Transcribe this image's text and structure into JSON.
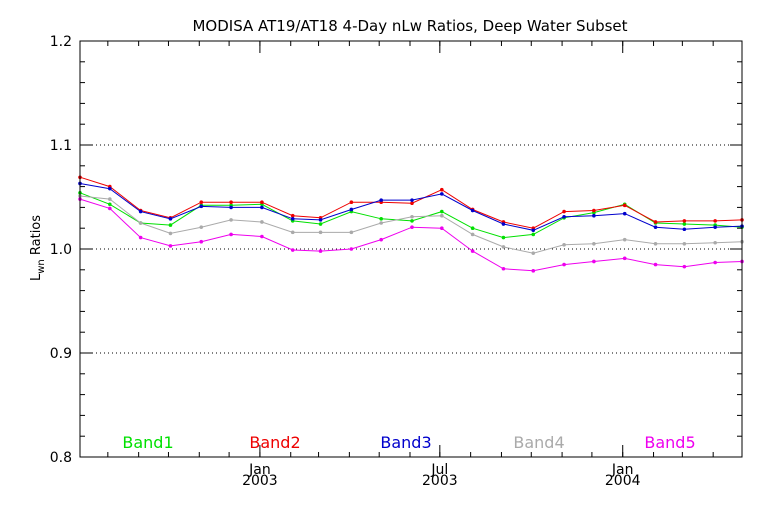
{
  "chart_data": {
    "type": "line",
    "title": "MODISA AT19/AT18 4-Day nLw Ratios, Deep Water Subset",
    "ylabel_main": "L",
    "ylabel_sub": "wn",
    "ylabel_rest": " Ratios",
    "xlabel": "",
    "ylim": [
      0.8,
      1.2
    ],
    "yticks": [
      0.8,
      0.9,
      1.0,
      1.1,
      1.2
    ],
    "ytick_labels": [
      "0.8",
      "0.9",
      "1.0",
      "1.1",
      "1.2"
    ],
    "x_range": [
      "2002-07-04",
      "2004-04-30"
    ],
    "x_ticks": [
      {
        "date": "2003-01-01",
        "line1": "Jan",
        "line2": "2003"
      },
      {
        "date": "2003-07-01",
        "line1": "Jul",
        "line2": "2003"
      },
      {
        "date": "2004-01-01",
        "line1": "Jan",
        "line2": "2004"
      }
    ],
    "grid": "horizontal dotted",
    "legend_placement": "bottom inside plot",
    "x": [
      "2002-07-04",
      "2002-08-03",
      "2002-09-03",
      "2002-10-03",
      "2002-11-03",
      "2002-12-03",
      "2003-01-03",
      "2003-02-03",
      "2003-03-03",
      "2003-04-03",
      "2003-05-03",
      "2003-06-03",
      "2003-07-03",
      "2003-08-03",
      "2003-09-03",
      "2003-10-03",
      "2003-11-03",
      "2003-12-03",
      "2004-01-03",
      "2004-02-03",
      "2004-03-03",
      "2004-04-03",
      "2004-04-30"
    ],
    "series": [
      {
        "name": "Band1",
        "color": "#00e000",
        "values": [
          1.054,
          1.043,
          1.025,
          1.023,
          1.042,
          1.042,
          1.043,
          1.027,
          1.024,
          1.036,
          1.029,
          1.027,
          1.036,
          1.02,
          1.011,
          1.014,
          1.03,
          1.035,
          1.043,
          1.025,
          1.024,
          1.023,
          1.021
        ]
      },
      {
        "name": "Band2",
        "color": "#ee0000",
        "values": [
          1.069,
          1.06,
          1.037,
          1.03,
          1.045,
          1.045,
          1.045,
          1.032,
          1.03,
          1.045,
          1.045,
          1.044,
          1.057,
          1.038,
          1.026,
          1.02,
          1.036,
          1.037,
          1.042,
          1.026,
          1.027,
          1.027,
          1.028
        ]
      },
      {
        "name": "Band3",
        "color": "#0000cc",
        "values": [
          1.063,
          1.058,
          1.036,
          1.029,
          1.041,
          1.04,
          1.04,
          1.029,
          1.028,
          1.038,
          1.047,
          1.047,
          1.053,
          1.037,
          1.024,
          1.018,
          1.031,
          1.032,
          1.034,
          1.021,
          1.019,
          1.021,
          1.022
        ]
      },
      {
        "name": "Band4",
        "color": "#aaaaaa",
        "values": [
          1.051,
          1.048,
          1.025,
          1.015,
          1.021,
          1.028,
          1.026,
          1.016,
          1.016,
          1.016,
          1.025,
          1.031,
          1.032,
          1.014,
          1.002,
          0.996,
          1.004,
          1.005,
          1.009,
          1.005,
          1.005,
          1.006,
          1.007
        ]
      },
      {
        "name": "Band5",
        "color": "#ee00ee",
        "values": [
          1.048,
          1.039,
          1.011,
          1.003,
          1.007,
          1.014,
          1.012,
          0.999,
          0.998,
          1.0,
          1.009,
          1.021,
          1.02,
          0.998,
          0.981,
          0.979,
          0.985,
          0.988,
          0.991,
          0.985,
          0.983,
          0.987,
          0.988
        ]
      }
    ]
  }
}
